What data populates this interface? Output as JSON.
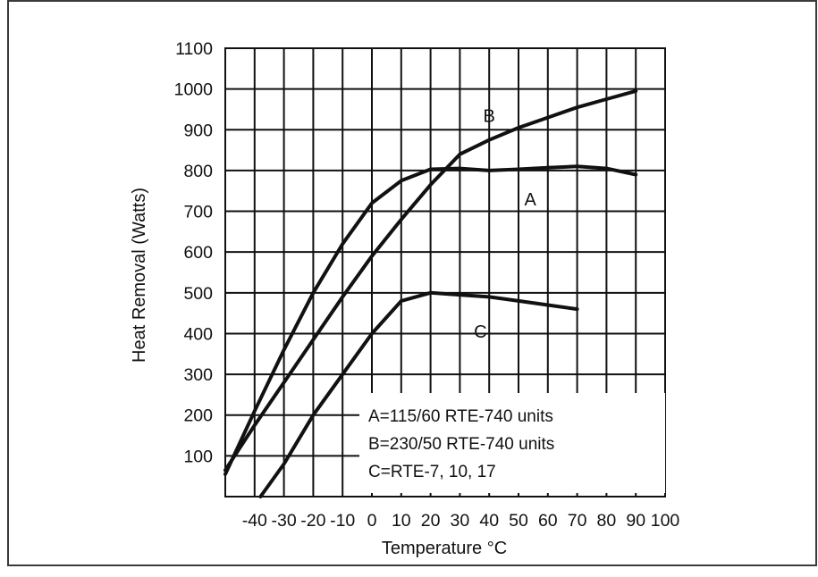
{
  "chart_data": {
    "type": "line",
    "title": "",
    "xlabel": "Temperature °C",
    "ylabel": "Heat Removal (Watts)",
    "xlim": [
      -50,
      100
    ],
    "ylim": [
      0,
      1100
    ],
    "x_ticks": [
      -40,
      -30,
      -20,
      -10,
      0,
      10,
      20,
      30,
      40,
      50,
      60,
      70,
      80,
      90,
      100
    ],
    "y_ticks": [
      100,
      200,
      300,
      400,
      500,
      600,
      700,
      800,
      900,
      1000,
      1100
    ],
    "x_tick_labels": [
      "-40",
      "-30",
      "-20",
      "-10",
      "0",
      "10",
      "20",
      "30",
      "40",
      "50",
      "60",
      "70",
      "80",
      "90",
      "100"
    ],
    "y_tick_labels": [
      "100",
      "200",
      "300",
      "400",
      "500",
      "600",
      "700",
      "800",
      "900",
      "1000",
      "1100"
    ],
    "grid": true,
    "legend": {
      "placement": "bottom-right",
      "entries": [
        "A=115/60 RTE-740 units",
        "B=230/50 RTE-740 units",
        "C=RTE-7, 10, 17"
      ]
    },
    "series": [
      {
        "name": "A",
        "x": [
          -50,
          -40,
          -30,
          -20,
          -10,
          0,
          10,
          20,
          30,
          40,
          50,
          60,
          70,
          80,
          90
        ],
        "y": [
          55,
          210,
          360,
          500,
          620,
          720,
          775,
          803,
          805,
          800,
          803,
          807,
          810,
          805,
          790
        ]
      },
      {
        "name": "B",
        "x": [
          -50,
          -40,
          -30,
          -20,
          -10,
          0,
          10,
          20,
          30,
          40,
          50,
          60,
          70,
          80,
          90
        ],
        "y": [
          65,
          175,
          280,
          385,
          490,
          590,
          680,
          765,
          840,
          875,
          905,
          930,
          955,
          975,
          995
        ]
      },
      {
        "name": "C",
        "x": [
          -40,
          -30,
          -20,
          -10,
          0,
          10,
          20,
          30,
          40,
          50,
          60,
          70
        ],
        "y": [
          -20,
          80,
          200,
          300,
          400,
          480,
          500,
          495,
          490,
          480,
          470,
          460
        ]
      }
    ]
  }
}
